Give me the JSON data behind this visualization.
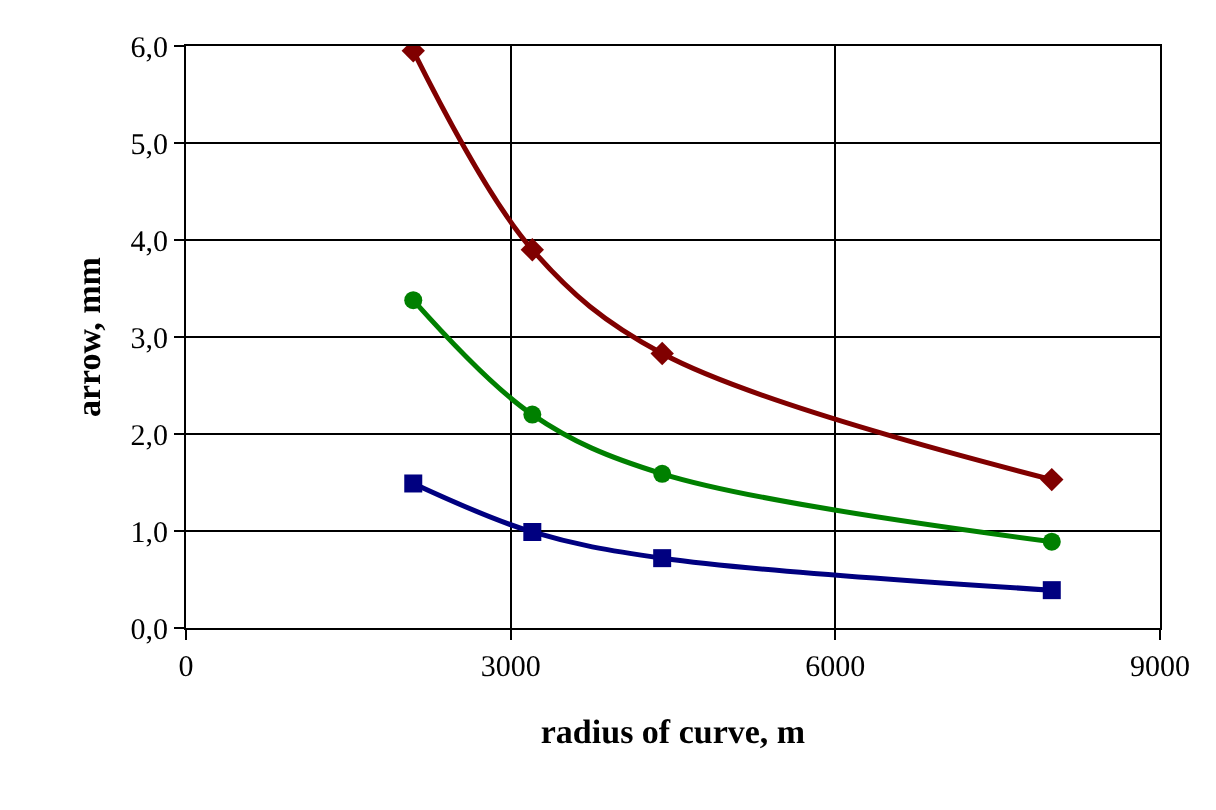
{
  "chart_data": {
    "type": "line",
    "xlabel": "radius of curve, m",
    "ylabel": "arrow, mm",
    "x": [
      2100,
      3200,
      4400,
      8000
    ],
    "series": [
      {
        "color": "#800000",
        "marker": "diamond",
        "values": [
          5.95,
          3.9,
          2.83,
          1.53
        ]
      },
      {
        "color": "#008000",
        "marker": "circle",
        "values": [
          3.38,
          2.2,
          1.59,
          0.89
        ]
      },
      {
        "color": "#000080",
        "marker": "square",
        "values": [
          1.49,
          0.99,
          0.72,
          0.39
        ]
      }
    ],
    "xlim": [
      0,
      9000
    ],
    "xticks": [
      0,
      3000,
      6000,
      9000
    ],
    "ylim": [
      0,
      6
    ],
    "yticks": [
      {
        "value": 0,
        "label": "0,0"
      },
      {
        "value": 1,
        "label": "1,0"
      },
      {
        "value": 2,
        "label": "2,0"
      },
      {
        "value": 3,
        "label": "3,0"
      },
      {
        "value": 4,
        "label": "4,0"
      },
      {
        "value": 5,
        "label": "5,0"
      },
      {
        "value": 6,
        "label": "6,0"
      }
    ],
    "grid": true,
    "line_style": "solid"
  }
}
